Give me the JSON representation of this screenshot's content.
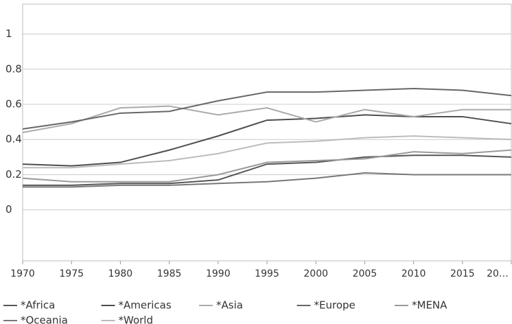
{
  "chart_data": {
    "type": "line",
    "x": [
      1970,
      1975,
      1980,
      1985,
      1990,
      1995,
      2000,
      2005,
      2010,
      2015,
      2020
    ],
    "series": [
      {
        "name": "*Africa",
        "color": "#555555",
        "values": [
          0.14,
          0.14,
          0.15,
          0.15,
          0.17,
          0.26,
          0.27,
          0.3,
          0.31,
          0.31,
          0.3
        ]
      },
      {
        "name": "*Americas",
        "color": "#4d4d4d",
        "values": [
          0.26,
          0.25,
          0.27,
          0.34,
          0.42,
          0.51,
          0.52,
          0.54,
          0.53,
          0.53,
          0.49
        ]
      },
      {
        "name": "*Asia",
        "color": "#aaaaaa",
        "values": [
          0.44,
          0.49,
          0.58,
          0.59,
          0.54,
          0.58,
          0.5,
          0.57,
          0.53,
          0.57,
          0.57
        ]
      },
      {
        "name": "*Europe",
        "color": "#666666",
        "values": [
          0.46,
          0.5,
          0.55,
          0.56,
          0.62,
          0.67,
          0.67,
          0.68,
          0.69,
          0.68,
          0.65
        ]
      },
      {
        "name": "*MENA",
        "color": "#999999",
        "values": [
          0.18,
          0.16,
          0.16,
          0.16,
          0.2,
          0.27,
          0.28,
          0.29,
          0.33,
          0.32,
          0.34
        ]
      },
      {
        "name": "*Oceania",
        "color": "#777777",
        "values": [
          0.13,
          0.13,
          0.14,
          0.14,
          0.15,
          0.16,
          0.18,
          0.21,
          0.2,
          0.2,
          0.2
        ]
      },
      {
        "name": "*World",
        "color": "#bbbbbb",
        "values": [
          0.24,
          0.24,
          0.26,
          0.28,
          0.32,
          0.38,
          0.39,
          0.41,
          0.42,
          0.41,
          0.4
        ]
      }
    ],
    "xlim": [
      1970,
      2020
    ],
    "xticks": [
      1970,
      1975,
      1980,
      1985,
      1990,
      1995,
      2000,
      2005,
      2010,
      2015,
      {
        "value": 2020,
        "label": "20…"
      }
    ],
    "ylim": [
      -0.29,
      1.17
    ],
    "yticks": [
      0,
      0.2,
      0.4,
      0.6,
      0.8,
      1
    ],
    "grid": true
  }
}
